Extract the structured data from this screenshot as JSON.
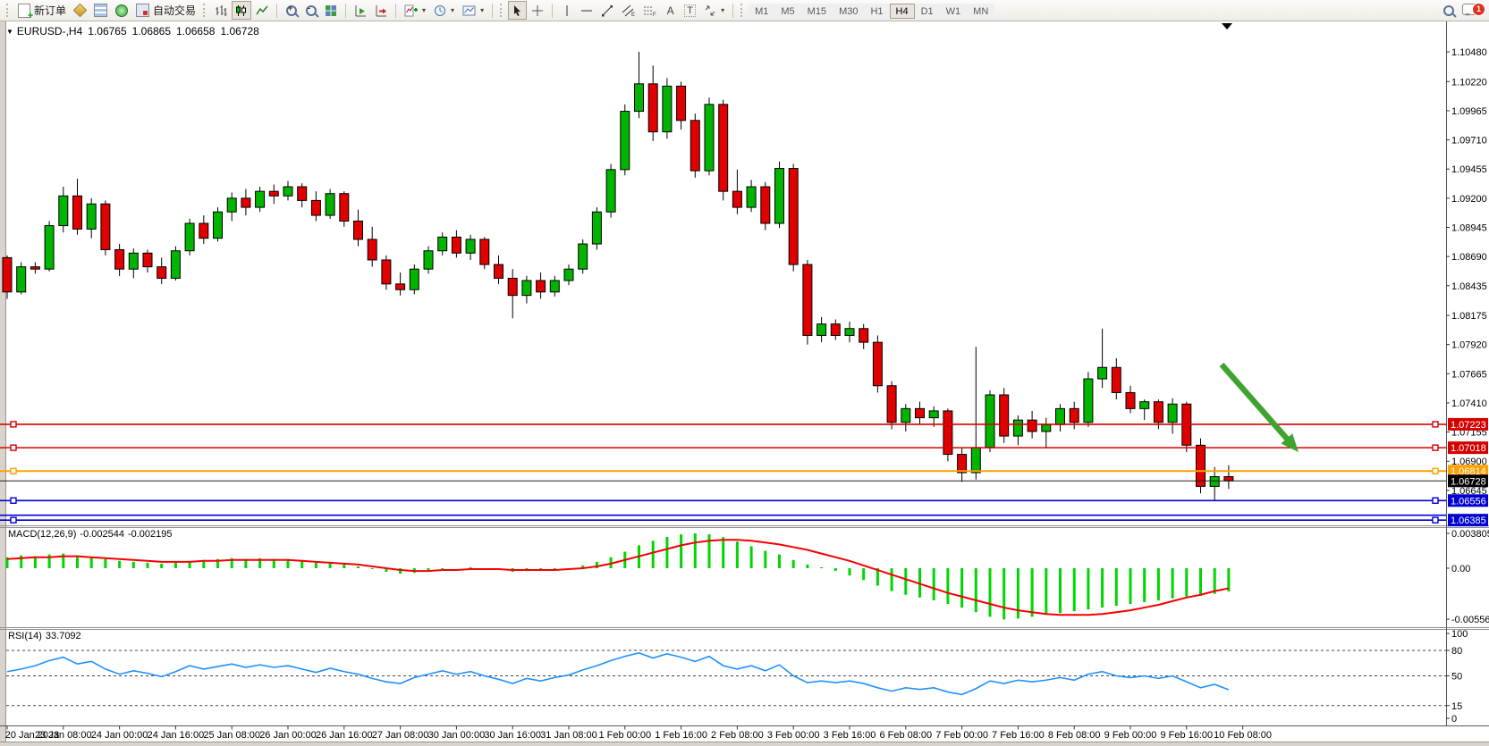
{
  "toolbar": {
    "new_order_label": "新订单",
    "autotrading_label": "自动交易",
    "timeframes": [
      "M1",
      "M5",
      "M15",
      "M30",
      "H1",
      "H4",
      "D1",
      "W1",
      "MN"
    ],
    "active_timeframe": "H4",
    "notification_count": "1",
    "text_tool_label": "A",
    "label_tool_label": "T",
    "channel_tool_sub": "E",
    "fibo_tool_sub": "F"
  },
  "chart_header": {
    "symbol": "EURUSD-,H4",
    "open": "1.06765",
    "high": "1.06865",
    "low": "1.06658",
    "close": "1.06728"
  },
  "indicators": {
    "macd": {
      "label": "MACD(12,26,9)",
      "value": "-0.002544",
      "signal": "-0.002195",
      "axis": [
        "0.003805",
        "0.00",
        "-0.005569"
      ]
    },
    "rsi": {
      "label": "RSI(14)",
      "value": "33.7092",
      "axis": [
        "100",
        "80",
        "50",
        "15",
        "0"
      ],
      "dashed_levels": [
        80,
        50,
        15
      ]
    }
  },
  "price_axis": {
    "ticks": [
      "1.10480",
      "1.10220",
      "1.09965",
      "1.09710",
      "1.09455",
      "1.09200",
      "1.08945",
      "1.08690",
      "1.08435",
      "1.08175",
      "1.07920",
      "1.07665",
      "1.07410",
      "1.07155",
      "1.06900",
      "1.06645"
    ]
  },
  "price_lines": [
    {
      "label": "1.07223",
      "value": 1.07223,
      "color": "#d40000",
      "double": false
    },
    {
      "label": "1.07018",
      "value": 1.07018,
      "color": "#d40000",
      "double": false
    },
    {
      "label": "1.06814",
      "value": 1.06814,
      "color": "#ffa000",
      "double": false
    },
    {
      "label": "1.06556",
      "value": 1.06556,
      "color": "#0000d4",
      "double": false
    },
    {
      "label": "1.06385",
      "value": 1.06385,
      "color": "#0000d4",
      "double": true
    }
  ],
  "current_price": {
    "label": "1.06728",
    "value": 1.06728,
    "color": "#000000"
  },
  "time_axis": {
    "labels": [
      "20 Jan 2023",
      "23 Jan 08:00",
      "24 Jan 00:00",
      "24 Jan 16:00",
      "25 Jan 08:00",
      "26 Jan 00:00",
      "26 Jan 16:00",
      "27 Jan 08:00",
      "30 Jan 00:00",
      "30 Jan 16:00",
      "31 Jan 08:00",
      "1 Feb 00:00",
      "1 Feb 16:00",
      "2 Feb 08:00",
      "3 Feb 00:00",
      "3 Feb 16:00",
      "6 Feb 08:00",
      "7 Feb 00:00",
      "7 Feb 16:00",
      "8 Feb 08:00",
      "9 Feb 00:00",
      "9 Feb 16:00",
      "10 Feb 08:00"
    ]
  },
  "annotation_arrow": {
    "color": "#3fa32f"
  },
  "chart_data": {
    "type": "candlestick",
    "symbol": "EURUSD",
    "timeframe": "H4",
    "title": "EURUSD-,H4 1.06765 1.06865 1.06658 1.06728",
    "price_axis_range": {
      "top": 1.1048,
      "bottom": 1.063
    },
    "macd_axis_range": {
      "max": 0.003805,
      "min": -0.005569
    },
    "rsi_axis_range": {
      "max": 100,
      "min": 0
    },
    "grid": false,
    "colors": {
      "bull": "#00b400",
      "bear": "#e10000",
      "wick": "#000000",
      "macd_hist": "#00d600",
      "macd_signal": "#f40000",
      "rsi_line": "#1e90ff"
    },
    "candles": [
      [
        1.0868,
        1.087,
        1.0832,
        1.0838
      ],
      [
        1.0838,
        1.0864,
        1.0836,
        1.086
      ],
      [
        1.086,
        1.0864,
        1.0854,
        1.0858
      ],
      [
        1.0858,
        1.09,
        1.0856,
        1.0896
      ],
      [
        1.0896,
        1.093,
        1.089,
        1.0922
      ],
      [
        1.0922,
        1.0937,
        1.0888,
        1.0893
      ],
      [
        1.0893,
        1.092,
        1.0885,
        1.0915
      ],
      [
        1.0915,
        1.0918,
        1.087,
        1.0875
      ],
      [
        1.0875,
        1.088,
        1.0852,
        1.0858
      ],
      [
        1.0858,
        1.0876,
        1.085,
        1.0872
      ],
      [
        1.0872,
        1.0875,
        1.0855,
        1.086
      ],
      [
        1.086,
        1.0868,
        1.0845,
        1.085
      ],
      [
        1.085,
        1.0878,
        1.0848,
        1.0874
      ],
      [
        1.0874,
        1.0902,
        1.087,
        1.0898
      ],
      [
        1.0898,
        1.0905,
        1.088,
        1.0885
      ],
      [
        1.0885,
        1.0912,
        1.0882,
        1.0908
      ],
      [
        1.0908,
        1.0925,
        1.09,
        1.092
      ],
      [
        1.092,
        1.0928,
        1.0905,
        1.0912
      ],
      [
        1.0912,
        1.093,
        1.0908,
        1.0926
      ],
      [
        1.0926,
        1.0932,
        1.0915,
        1.0922
      ],
      [
        1.0922,
        1.0935,
        1.0918,
        1.093
      ],
      [
        1.093,
        1.0933,
        1.0912,
        1.0918
      ],
      [
        1.0918,
        1.0926,
        1.09,
        1.0905
      ],
      [
        1.0905,
        1.0928,
        1.0902,
        1.0924
      ],
      [
        1.0924,
        1.0926,
        1.0895,
        1.09
      ],
      [
        1.09,
        1.091,
        1.0878,
        1.0884
      ],
      [
        1.0884,
        1.0895,
        1.086,
        1.0866
      ],
      [
        1.0866,
        1.087,
        1.084,
        1.0845
      ],
      [
        1.0845,
        1.0855,
        1.0835,
        1.084
      ],
      [
        1.084,
        1.0862,
        1.0836,
        1.0858
      ],
      [
        1.0858,
        1.0878,
        1.0854,
        1.0874
      ],
      [
        1.0874,
        1.089,
        1.087,
        1.0886
      ],
      [
        1.0886,
        1.0892,
        1.0868,
        1.0872
      ],
      [
        1.0872,
        1.0888,
        1.0866,
        1.0884
      ],
      [
        1.0884,
        1.0886,
        1.0858,
        1.0862
      ],
      [
        1.0862,
        1.087,
        1.0845,
        1.085
      ],
      [
        1.085,
        1.0858,
        1.0815,
        1.0835
      ],
      [
        1.0835,
        1.0852,
        1.0828,
        1.0848
      ],
      [
        1.0848,
        1.0855,
        1.0832,
        1.0838
      ],
      [
        1.0838,
        1.0852,
        1.0834,
        1.0848
      ],
      [
        1.0848,
        1.0862,
        1.0844,
        1.0858
      ],
      [
        1.0858,
        1.0884,
        1.0854,
        1.088
      ],
      [
        1.088,
        1.0912,
        1.0875,
        1.0908
      ],
      [
        1.0908,
        1.095,
        1.0903,
        1.0945
      ],
      [
        1.0945,
        1.1002,
        1.094,
        1.0996
      ],
      [
        1.0996,
        1.1048,
        1.099,
        1.102
      ],
      [
        1.102,
        1.1036,
        1.097,
        1.0978
      ],
      [
        1.0978,
        1.1025,
        1.0972,
        1.1018
      ],
      [
        1.1018,
        1.1022,
        1.098,
        1.0988
      ],
      [
        1.0988,
        1.0994,
        1.0938,
        1.0944
      ],
      [
        1.0944,
        1.1008,
        1.094,
        1.1002
      ],
      [
        1.1002,
        1.1006,
        1.0918,
        1.0926
      ],
      [
        1.0926,
        1.0945,
        1.0906,
        1.0912
      ],
      [
        1.0912,
        1.0936,
        1.0908,
        1.093
      ],
      [
        1.093,
        1.0934,
        1.0892,
        1.0898
      ],
      [
        1.0898,
        1.0952,
        1.0894,
        1.0946
      ],
      [
        1.0946,
        1.095,
        1.0856,
        1.0862
      ],
      [
        1.0862,
        1.0866,
        1.0792,
        1.08
      ],
      [
        1.08,
        1.0816,
        1.0794,
        1.081
      ],
      [
        1.081,
        1.0814,
        1.0796,
        1.08
      ],
      [
        1.08,
        1.0812,
        1.0794,
        1.0806
      ],
      [
        1.0806,
        1.081,
        1.0788,
        1.0794
      ],
      [
        1.0794,
        1.08,
        1.075,
        1.0756
      ],
      [
        1.0756,
        1.076,
        1.0718,
        1.0724
      ],
      [
        1.0724,
        1.074,
        1.0716,
        1.0736
      ],
      [
        1.0736,
        1.0742,
        1.0722,
        1.0728
      ],
      [
        1.0728,
        1.0738,
        1.072,
        1.0734
      ],
      [
        1.0734,
        1.0736,
        1.069,
        1.0696
      ],
      [
        1.0696,
        1.0702,
        1.0672,
        1.068
      ],
      [
        1.068,
        1.079,
        1.0674,
        1.0702
      ],
      [
        1.0702,
        1.0752,
        1.0698,
        1.0748
      ],
      [
        1.0748,
        1.0754,
        1.0706,
        1.0712
      ],
      [
        1.0712,
        1.073,
        1.0704,
        1.0726
      ],
      [
        1.0726,
        1.0734,
        1.071,
        1.0716
      ],
      [
        1.0716,
        1.0728,
        1.0702,
        1.0722
      ],
      [
        1.0722,
        1.074,
        1.0716,
        1.0736
      ],
      [
        1.0736,
        1.0742,
        1.0718,
        1.0724
      ],
      [
        1.0724,
        1.0768,
        1.072,
        1.0762
      ],
      [
        1.0762,
        1.0806,
        1.0754,
        1.0772
      ],
      [
        1.0772,
        1.078,
        1.0744,
        1.075
      ],
      [
        1.075,
        1.0756,
        1.0732,
        1.0736
      ],
      [
        1.0736,
        1.0744,
        1.0726,
        1.0742
      ],
      [
        1.0742,
        1.0744,
        1.0718,
        1.0724
      ],
      [
        1.0724,
        1.0745,
        1.0714,
        1.074
      ],
      [
        1.074,
        1.0742,
        1.0698,
        1.0704
      ],
      [
        1.0704,
        1.071,
        1.0662,
        1.0668
      ],
      [
        1.0668,
        1.0685,
        1.0655,
        1.06765
      ],
      [
        1.06765,
        1.06865,
        1.06658,
        1.06728
      ]
    ],
    "macd_histogram": [
      0.0012,
      0.0014,
      0.0013,
      0.0015,
      0.0016,
      0.0014,
      0.0012,
      0.001,
      0.0008,
      0.0007,
      0.0006,
      0.0005,
      0.0006,
      0.0008,
      0.0009,
      0.001,
      0.0011,
      0.001,
      0.0011,
      0.001,
      0.001,
      0.0008,
      0.0006,
      0.0005,
      0.0004,
      0.0002,
      -0.0001,
      -0.0004,
      -0.0006,
      -0.0005,
      -0.0003,
      -0.0001,
      0.0,
      0.0001,
      0.0,
      -0.0002,
      -0.0004,
      -0.0003,
      -0.0003,
      -0.0002,
      0.0,
      0.0003,
      0.0007,
      0.0012,
      0.0018,
      0.0025,
      0.003,
      0.0034,
      0.0037,
      0.0038,
      0.0037,
      0.0034,
      0.0029,
      0.0024,
      0.0019,
      0.0015,
      0.0009,
      0.0004,
      0.0001,
      -0.0003,
      -0.0008,
      -0.0013,
      -0.0019,
      -0.0025,
      -0.0029,
      -0.0032,
      -0.0035,
      -0.0039,
      -0.0043,
      -0.0048,
      -0.0053,
      -0.0056,
      -0.0055,
      -0.0053,
      -0.0051,
      -0.0049,
      -0.0047,
      -0.0045,
      -0.0043,
      -0.0041,
      -0.0039,
      -0.0037,
      -0.0035,
      -0.0033,
      -0.0031,
      -0.003,
      -0.0028,
      -0.002544
    ],
    "macd_signal": [
      0.001,
      0.0011,
      0.0012,
      0.0012,
      0.0013,
      0.0013,
      0.0012,
      0.0011,
      0.001,
      0.0009,
      0.0008,
      0.0007,
      0.0007,
      0.0007,
      0.0008,
      0.0008,
      0.0009,
      0.0009,
      0.0009,
      0.0009,
      0.0009,
      0.0008,
      0.0007,
      0.0006,
      0.0005,
      0.0004,
      0.0002,
      0.0,
      -0.0002,
      -0.0003,
      -0.0003,
      -0.0002,
      -0.0002,
      -0.0001,
      -0.0001,
      -0.0001,
      -0.0002,
      -0.0002,
      -0.0002,
      -0.0002,
      -0.0001,
      0.0,
      0.0002,
      0.0005,
      0.0009,
      0.0013,
      0.0017,
      0.0021,
      0.0025,
      0.0028,
      0.003,
      0.0031,
      0.0031,
      0.003,
      0.0028,
      0.0026,
      0.0023,
      0.002,
      0.0016,
      0.0012,
      0.0008,
      0.0003,
      -0.0002,
      -0.0007,
      -0.0012,
      -0.0017,
      -0.0022,
      -0.0027,
      -0.0031,
      -0.0035,
      -0.0039,
      -0.0043,
      -0.0046,
      -0.0048,
      -0.005,
      -0.0051,
      -0.0051,
      -0.0051,
      -0.005,
      -0.0048,
      -0.0046,
      -0.0043,
      -0.004,
      -0.0036,
      -0.0032,
      -0.0029,
      -0.0025,
      -0.002195
    ],
    "rsi": [
      55,
      58,
      62,
      68,
      72,
      64,
      67,
      58,
      52,
      56,
      53,
      49,
      55,
      62,
      58,
      61,
      64,
      60,
      63,
      60,
      62,
      58,
      54,
      59,
      55,
      52,
      47,
      43,
      41,
      48,
      52,
      56,
      52,
      55,
      50,
      46,
      41,
      47,
      44,
      48,
      51,
      57,
      62,
      68,
      73,
      77,
      71,
      76,
      72,
      67,
      73,
      62,
      58,
      62,
      56,
      63,
      50,
      42,
      44,
      42,
      44,
      41,
      36,
      32,
      36,
      34,
      36,
      31,
      28,
      35,
      44,
      41,
      45,
      43,
      45,
      48,
      45,
      52,
      55,
      50,
      48,
      50,
      47,
      50,
      43,
      36,
      40,
      33.71
    ]
  }
}
